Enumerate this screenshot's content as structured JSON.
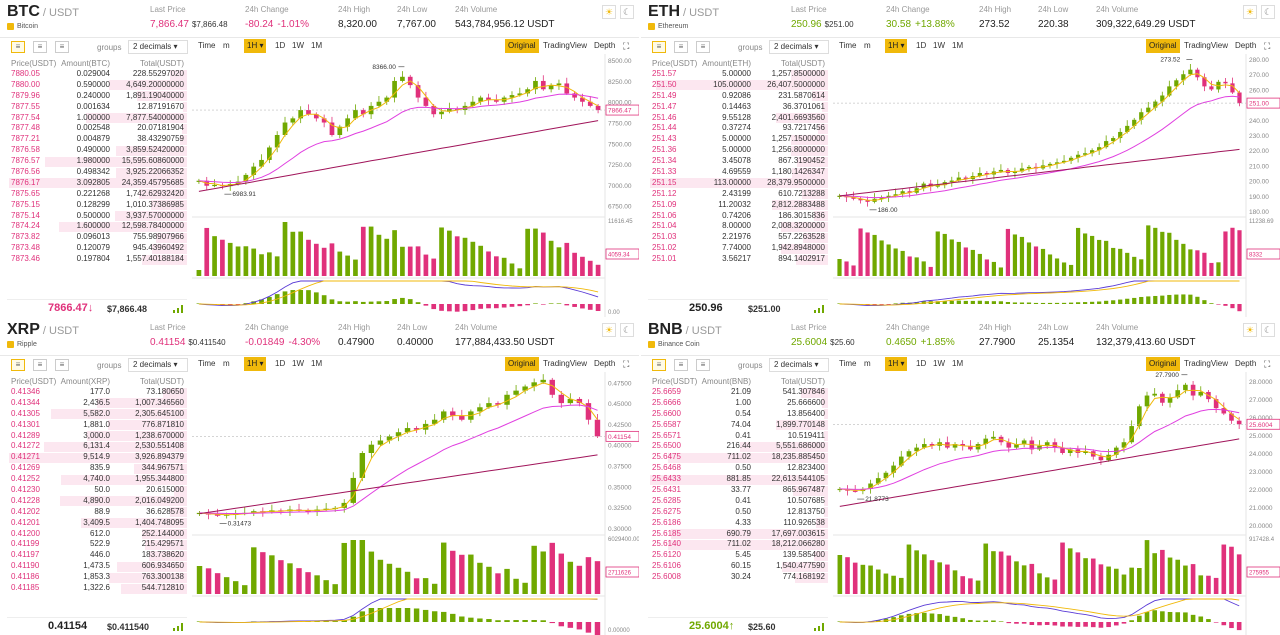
{
  "labels": {
    "last_price": "Last Price",
    "change": "24h Change",
    "high": "24h High",
    "low": "24h Low",
    "volume": "24h Volume",
    "groups": "groups",
    "decimals": "2 decimals ▾",
    "time": "Time",
    "m": "m",
    "interval": "1H ▾",
    "d1": "1D",
    "w1": "1W",
    "mo1": "1M",
    "original": "Original",
    "tradingview": "TradingView",
    "depth": "Depth"
  },
  "colors": {
    "up": "#70a800",
    "down": "#e0317b",
    "ma7": "#f0b90b",
    "ma25": "#e040e0",
    "ma99": "#a0145a",
    "accent": "#f0b90b"
  },
  "panels": [
    {
      "symbol": "BTC",
      "quote": "/ USDT",
      "coin": "Bitcoin",
      "last_price": "7,866.47",
      "last_usd": "$7,866.48",
      "change": "-80.24",
      "change_pct": "-1.01%",
      "change_dir": "neg",
      "high": "8,320.00",
      "low": "7,767.00",
      "volume": "543,784,956.12 USDT",
      "ob_cols": [
        "Price(USDT)",
        "Amount(BTC)",
        "Total(USDT)"
      ],
      "orders": [
        [
          "7880.05",
          "0.029004",
          "228.55297020"
        ],
        [
          "7880.00",
          "0.590000",
          "4,649.20000000"
        ],
        [
          "7879.96",
          "0.240000",
          "1,891.19040000"
        ],
        [
          "7877.55",
          "0.001634",
          "12.87191670"
        ],
        [
          "7877.54",
          "1.000000",
          "7,877.54000000"
        ],
        [
          "7877.48",
          "0.002548",
          "20.07181904"
        ],
        [
          "7877.21",
          "0.004879",
          "38.43290759"
        ],
        [
          "7876.58",
          "0.490000",
          "3,859.52420000"
        ],
        [
          "7876.57",
          "1.980000",
          "15,595.60860000"
        ],
        [
          "7876.56",
          "0.498342",
          "3,925.22066352"
        ],
        [
          "7876.17",
          "3.092805",
          "24,359.45795685"
        ],
        [
          "7875.65",
          "0.221268",
          "1,742.62932420"
        ],
        [
          "7875.15",
          "0.128299",
          "1,010.37386985"
        ],
        [
          "7875.14",
          "0.500000",
          "3,937.57000000"
        ],
        [
          "7874.24",
          "1.600000",
          "12,598.78400000"
        ],
        [
          "7873.82",
          "0.096013",
          "755.98907966"
        ],
        [
          "7873.48",
          "0.120079",
          "945.43960492"
        ],
        [
          "7873.46",
          "0.197804",
          "1,557.40188184"
        ]
      ],
      "ob_last": "7866.47↓",
      "ob_last_usd": "$7,866.48",
      "ob_last_dir": "neg",
      "chart": {
        "price_ticks": [
          "8500.00",
          "8250.00",
          "8000.00",
          "7750.00",
          "7500.00",
          "7250.00",
          "7000.00",
          "6750.00"
        ],
        "current_price_tag": "7866.47",
        "high_label": "8366.00",
        "low_label": "6983.91",
        "vol_top": "11616.45",
        "vol_tag": "4059.34",
        "macd_zero": "0.00",
        "trend": [
          7050,
          6990,
          7000,
          6985,
          7010,
          7040,
          7120,
          7220,
          7300,
          7450,
          7600,
          7750,
          7800,
          7900,
          7850,
          7800,
          7750,
          7600,
          7700,
          7800,
          7900,
          7850,
          7950,
          8000,
          8050,
          8250,
          8300,
          8200,
          8050,
          7950,
          7850,
          7880,
          7920,
          7900,
          7950,
          8000,
          8050,
          8020,
          8000,
          8050,
          8080,
          8100,
          8150,
          8250,
          8150,
          8200,
          8220,
          8100,
          8050,
          8000,
          7950,
          7900
        ],
        "vmin": 6650,
        "vmax": 8550
      }
    },
    {
      "symbol": "ETH",
      "quote": "/ USDT",
      "coin": "Ethereum",
      "last_price": "250.96",
      "last_usd": "$251.00",
      "change": "30.58",
      "change_pct": "+13.88%",
      "change_dir": "pos",
      "high": "273.52",
      "low": "220.38",
      "volume": "309,322,649.29 USDT",
      "ob_cols": [
        "Price(USDT)",
        "Amount(ETH)",
        "Total(USDT)"
      ],
      "orders": [
        [
          "251.57",
          "5.00000",
          "1,257.8500000"
        ],
        [
          "251.50",
          "105.00000",
          "26,407.5000000"
        ],
        [
          "251.49",
          "0.92086",
          "231.5870614"
        ],
        [
          "251.47",
          "0.14463",
          "36.3701061"
        ],
        [
          "251.46",
          "9.55128",
          "2,401.6693560"
        ],
        [
          "251.44",
          "0.37274",
          "93.7217456"
        ],
        [
          "251.43",
          "5.00000",
          "1,257.1500000"
        ],
        [
          "251.36",
          "5.00000",
          "1,256.8000000"
        ],
        [
          "251.34",
          "3.45078",
          "867.3190452"
        ],
        [
          "251.33",
          "4.69559",
          "1,180.1426347"
        ],
        [
          "251.15",
          "113.00000",
          "28,379.9500000"
        ],
        [
          "251.12",
          "2.43199",
          "610.7213288"
        ],
        [
          "251.09",
          "11.20032",
          "2,812.2883488"
        ],
        [
          "251.06",
          "0.74206",
          "186.3015836"
        ],
        [
          "251.04",
          "8.00000",
          "2,008.3200000"
        ],
        [
          "251.03",
          "2.21976",
          "557.2263528"
        ],
        [
          "251.02",
          "7.74000",
          "1,942.8948000"
        ],
        [
          "251.01",
          "3.56217",
          "894.1402917"
        ]
      ],
      "ob_last": "250.96",
      "ob_last_usd": "$251.00",
      "ob_last_dir": "none",
      "chart": {
        "price_ticks": [
          "280.00",
          "270.00",
          "260.00",
          "250.00",
          "240.00",
          "230.00",
          "220.00",
          "210.00",
          "200.00",
          "190.00",
          "180.00"
        ],
        "current_price_tag": "251.00",
        "high_label": "273.52",
        "low_label": "186.00",
        "vol_top": "11238.69",
        "vol_tag": "8332",
        "macd_zero": "",
        "trend": [
          190,
          189,
          188,
          187,
          186,
          188,
          189,
          190,
          191,
          193,
          192,
          195,
          198,
          196,
          197,
          199,
          200,
          202,
          201,
          203,
          205,
          204,
          206,
          207,
          205,
          206,
          208,
          209,
          208,
          210,
          211,
          212,
          213,
          215,
          217,
          218,
          220,
          222,
          226,
          228,
          232,
          236,
          240,
          245,
          248,
          252,
          256,
          262,
          266,
          270,
          273,
          268,
          262,
          260,
          265,
          264,
          258,
          251
        ],
        "vmin": 178,
        "vmax": 282
      }
    },
    {
      "symbol": "XRP",
      "quote": "/ USDT",
      "coin": "Ripple",
      "last_price": "0.41154",
      "last_usd": "$0.411540",
      "change": "-0.01849",
      "change_pct": "-4.30%",
      "change_dir": "neg",
      "high": "0.47900",
      "low": "0.40000",
      "volume": "177,884,433.50 USDT",
      "ob_cols": [
        "Price(USDT)",
        "Amount(XRP)",
        "Total(USDT)"
      ],
      "orders": [
        [
          "0.41346",
          "177.0",
          "73.180650"
        ],
        [
          "0.41344",
          "2,436.5",
          "1,007.346560"
        ],
        [
          "0.41305",
          "5,582.0",
          "2,305.645100"
        ],
        [
          "0.41301",
          "1,881.0",
          "776.871810"
        ],
        [
          "0.41289",
          "3,000.0",
          "1,238.670000"
        ],
        [
          "0.41272",
          "6,131.4",
          "2,530.551408"
        ],
        [
          "0.41271",
          "9,514.9",
          "3,926.894379"
        ],
        [
          "0.41269",
          "835.9",
          "344.967571"
        ],
        [
          "0.41252",
          "4,740.0",
          "1,955.344800"
        ],
        [
          "0.41230",
          "50.0",
          "20.615000"
        ],
        [
          "0.41228",
          "4,890.0",
          "2,016.049200"
        ],
        [
          "0.41202",
          "88.9",
          "36.628578"
        ],
        [
          "0.41201",
          "3,409.5",
          "1,404.748095"
        ],
        [
          "0.41200",
          "612.0",
          "252.144000"
        ],
        [
          "0.41199",
          "522.9",
          "215.429571"
        ],
        [
          "0.41197",
          "446.0",
          "183.738620"
        ],
        [
          "0.41190",
          "1,473.5",
          "606.934650"
        ],
        [
          "0.41186",
          "1,853.3",
          "763.300138"
        ],
        [
          "0.41185",
          "1,322.6",
          "544.712810"
        ]
      ],
      "ob_last": "0.41154",
      "ob_last_usd": "$0.411540",
      "ob_last_dir": "none",
      "chart": {
        "price_ticks": [
          "0.47500",
          "0.45000",
          "0.42500",
          "0.40000",
          "0.37500",
          "0.35000",
          "0.32500",
          "0.30000"
        ],
        "current_price_tag": "0.41154",
        "high_label": "0.47900",
        "low_label": "0.31473",
        "vol_top": "6029400.00",
        "vol_tag": "2711626",
        "macd_zero": "0.00000",
        "trend": [
          0.318,
          0.316,
          0.315,
          0.316,
          0.317,
          0.318,
          0.32,
          0.319,
          0.321,
          0.32,
          0.322,
          0.321,
          0.32,
          0.322,
          0.323,
          0.324,
          0.33,
          0.36,
          0.39,
          0.4,
          0.405,
          0.41,
          0.415,
          0.42,
          0.418,
          0.425,
          0.43,
          0.44,
          0.435,
          0.43,
          0.44,
          0.445,
          0.45,
          0.448,
          0.46,
          0.465,
          0.47,
          0.475,
          0.478,
          0.46,
          0.45,
          0.455,
          0.45,
          0.43,
          0.41
        ],
        "vmin": 0.295,
        "vmax": 0.485
      }
    },
    {
      "symbol": "BNB",
      "quote": "/ USDT",
      "coin": "Binance Coin",
      "last_price": "25.6004",
      "last_usd": "$25.60",
      "change": "0.4650",
      "change_pct": "+1.85%",
      "change_dir": "pos",
      "high": "27.7900",
      "low": "25.1354",
      "volume": "132,379,413.60 USDT",
      "ob_cols": [
        "Price(USDT)",
        "Amount(BNB)",
        "Total(USDT)"
      ],
      "orders": [
        [
          "25.6659",
          "21.09",
          "541.307846"
        ],
        [
          "25.6666",
          "1.00",
          "25.666600"
        ],
        [
          "25.6600",
          "0.54",
          "13.856400"
        ],
        [
          "25.6587",
          "74.04",
          "1,899.770148"
        ],
        [
          "25.6571",
          "0.41",
          "10.519411"
        ],
        [
          "25.6500",
          "216.44",
          "5,551.686000"
        ],
        [
          "25.6475",
          "711.02",
          "18,235.885450"
        ],
        [
          "25.6468",
          "0.50",
          "12.823400"
        ],
        [
          "25.6433",
          "881.85",
          "22,613.544105"
        ],
        [
          "25.6431",
          "33.77",
          "865.967487"
        ],
        [
          "25.6285",
          "0.41",
          "10.507685"
        ],
        [
          "25.6275",
          "0.50",
          "12.813750"
        ],
        [
          "25.6186",
          "4.33",
          "110.926538"
        ],
        [
          "25.6185",
          "690.79",
          "17,697.003615"
        ],
        [
          "25.6140",
          "711.02",
          "18,212.066280"
        ],
        [
          "25.6120",
          "5.45",
          "139.585400"
        ],
        [
          "25.6106",
          "60.15",
          "1,540.477590"
        ],
        [
          "25.6008",
          "30.24",
          "774.168192"
        ]
      ],
      "ob_last": "25.6004↑",
      "ob_last_usd": "$25.60",
      "ob_last_dir": "pos",
      "chart": {
        "price_ticks": [
          "28.0000",
          "27.0000",
          "26.0000",
          "25.0000",
          "24.0000",
          "23.0000",
          "22.0000",
          "21.0000",
          "20.0000"
        ],
        "current_price_tag": "25.6004",
        "high_label": "27.7900",
        "low_label": "21.8773",
        "vol_top": "917428.4",
        "vol_tag": "275955",
        "macd_zero": "",
        "trend": [
          22.0,
          21.9,
          21.88,
          22.0,
          22.3,
          22.6,
          22.9,
          23.3,
          23.8,
          24.1,
          24.3,
          24.5,
          24.4,
          24.6,
          24.3,
          24.5,
          24.4,
          24.2,
          24.5,
          24.8,
          24.9,
          24.6,
          24.3,
          24.5,
          24.7,
          24.2,
          24.4,
          24.6,
          24.3,
          24.0,
          24.2,
          24.0,
          24.1,
          23.8,
          23.6,
          23.9,
          24.3,
          24.6,
          25.5,
          26.6,
          27.2,
          27.3,
          26.8,
          27.1,
          27.5,
          27.8,
          27.2,
          27.4,
          27.0,
          26.5,
          26.2,
          25.8,
          25.6
        ],
        "vmin": 19.6,
        "vmax": 28.4
      }
    }
  ]
}
